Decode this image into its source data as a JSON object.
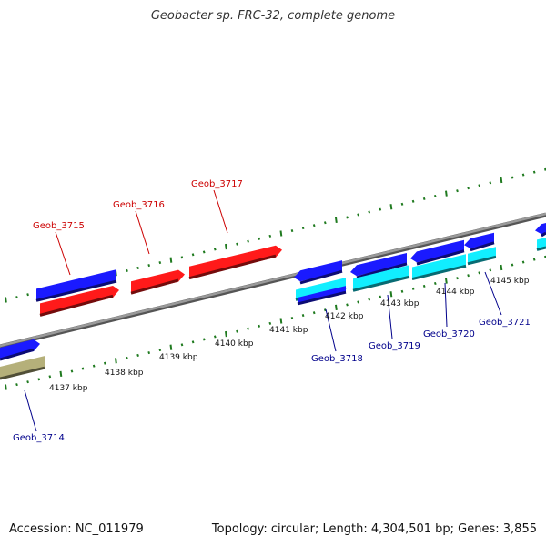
{
  "title": "Geobacter sp. FRC-32, complete genome",
  "accession": "Accession: NC_011979",
  "summary": "Topology: circular; Length: 4,304,501 bp; Genes: 3,855",
  "colors": {
    "backbone": "#7a7a7a",
    "tick": "#1f7a1f",
    "gene_blue": "#1a1aff",
    "gene_red": "#ff1a1a",
    "gene_cyan": "#11eeff",
    "gene_olive": "#b5b07a",
    "label_red": "#cc0000",
    "label_blue": "#00008b"
  },
  "ruler_labels": [
    "4137 kbp",
    "4138 kbp",
    "4139 kbp",
    "4140 kbp",
    "4141 kbp",
    "4142 kbp",
    "4143 kbp",
    "4144 kbp",
    "4145 kbp"
  ],
  "gene_labels": [
    {
      "text": "Geob_3714",
      "color": "label_blue"
    },
    {
      "text": "Geob_3715",
      "color": "label_red"
    },
    {
      "text": "Geob_3716",
      "color": "label_red"
    },
    {
      "text": "Geob_3717",
      "color": "label_red"
    },
    {
      "text": "Geob_3718",
      "color": "label_blue"
    },
    {
      "text": "Geob_3719",
      "color": "label_blue"
    },
    {
      "text": "Geob_3720",
      "color": "label_blue"
    },
    {
      "text": "Geob_3721",
      "color": "label_blue"
    }
  ]
}
